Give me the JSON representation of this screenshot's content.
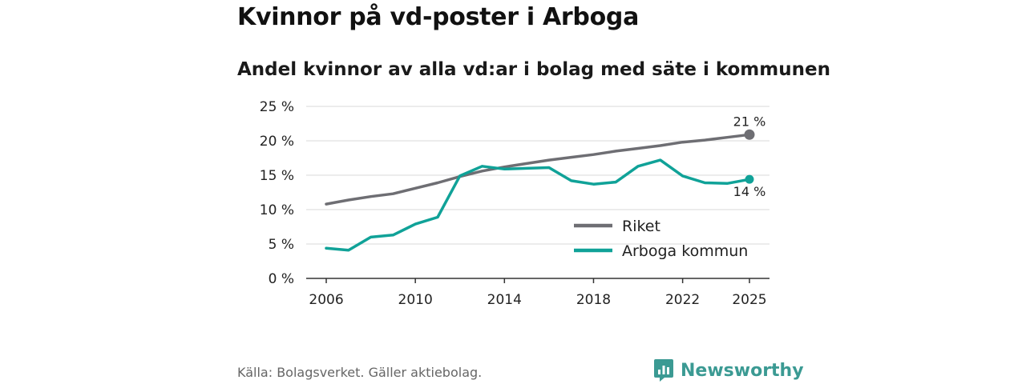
{
  "title": "Kvinnor på vd-poster i Arboga",
  "subtitle": "Andel kvinnor av alla vd:ar i bolag med säte i kommunen",
  "source": "Källa: Bolagsverket. Gäller aktiebolag.",
  "brand": {
    "name": "Newsworthy",
    "logo_icon": "newsworthy-logo-icon"
  },
  "colors": {
    "riket": "#6e6e73",
    "arboga": "#10a298",
    "grid": "#d9d9d9",
    "axis": "#333333",
    "brand": "#3b9a93"
  },
  "chart_data": {
    "type": "line",
    "title": "Andel kvinnor av alla vd:ar i bolag med säte i kommunen",
    "xlabel": "",
    "ylabel": "",
    "x": [
      2006,
      2007,
      2008,
      2009,
      2010,
      2011,
      2012,
      2013,
      2014,
      2015,
      2016,
      2017,
      2018,
      2019,
      2020,
      2021,
      2022,
      2023,
      2024,
      2025
    ],
    "xlim": [
      2005.1,
      2025.9
    ],
    "ylim": [
      0,
      25
    ],
    "x_ticks": [
      2006,
      2010,
      2014,
      2018,
      2022,
      2025
    ],
    "x_tick_labels": [
      "2006",
      "2010",
      "2014",
      "2018",
      "2022",
      "2025"
    ],
    "y_ticks": [
      0,
      5,
      10,
      15,
      20,
      25
    ],
    "y_tick_labels": [
      "0 %",
      "5 %",
      "10 %",
      "15 %",
      "20 %",
      "25 %"
    ],
    "grid": "horizontal",
    "legend_position": "bottom-right",
    "series": [
      {
        "name": "Riket",
        "color": "#6e6e73",
        "values": [
          10.8,
          11.4,
          11.9,
          12.3,
          13.1,
          13.9,
          14.8,
          15.6,
          16.2,
          16.7,
          17.2,
          17.6,
          18.0,
          18.5,
          18.9,
          19.3,
          19.8,
          20.1,
          20.5,
          20.9
        ],
        "end_label": "21 %"
      },
      {
        "name": "Arboga kommun",
        "color": "#10a298",
        "values": [
          4.4,
          4.1,
          6.0,
          6.3,
          7.9,
          8.9,
          14.9,
          16.3,
          15.9,
          16.0,
          16.1,
          14.2,
          13.7,
          14.0,
          16.3,
          17.2,
          14.9,
          13.9,
          13.8,
          14.4
        ],
        "end_label": "14 %"
      }
    ]
  }
}
